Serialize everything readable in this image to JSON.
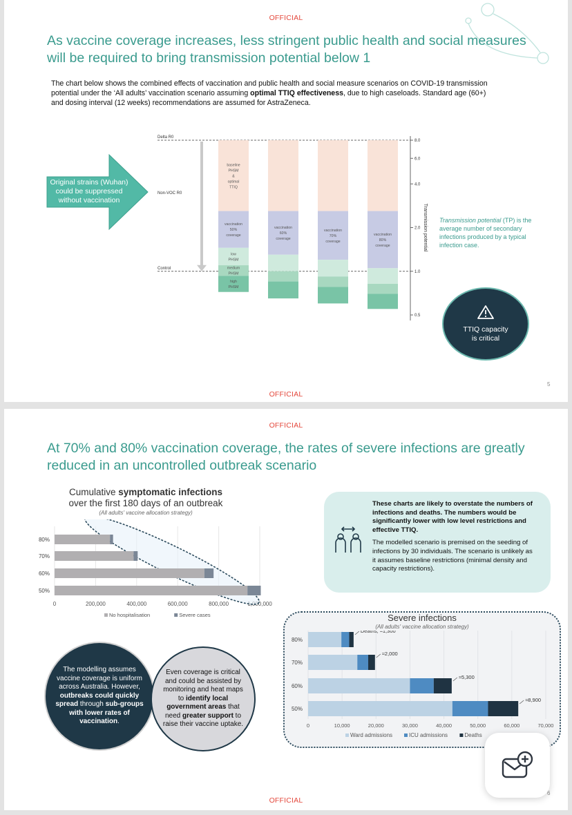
{
  "slide1": {
    "official": "OFFICIAL",
    "official_footer": "OFFICIAL",
    "title": "As vaccine coverage increases, less stringent public health and social measures will be required to bring transmission potential below 1",
    "intro_parts": {
      "a": "The chart below shows the combined effects of vaccination and public health and social measure scenarios on COVID-19 transmission potential under the ‘All adults’ vaccination scenario assuming ",
      "b": "optimal TTIQ effectiveness",
      "c": ", due to high caseloads. Standard age (60+) and dosing interval (12 weeks) recommendations are assumed for AstraZeneca."
    },
    "arrow_text": "Original strains (Wuhan) could be suppressed without vaccination",
    "page_number": "5",
    "tp_definition_em": "Transmission potential",
    "tp_definition_rest": " (TP) is the average number of secondary infections produced by a typical infection case.",
    "ttiq_line1": "TTIQ capacity",
    "ttiq_line2": "is critical",
    "chart_data": {
      "type": "bar",
      "ylabel": "Transmission potential",
      "scale": "log",
      "yticks": [
        0.5,
        1.0,
        2.0,
        4.0,
        6.0,
        8.0
      ],
      "ytick_labels": [
        "0.5",
        "1.0",
        "2.0",
        "4.0",
        "6.0",
        "8.0"
      ],
      "reference_lines": [
        {
          "label": "Delta R0",
          "value": 8.0
        },
        {
          "label": "Non-VOC R0",
          "value": 3.3
        },
        {
          "label": "Control",
          "value": 1.0
        }
      ],
      "columns": [
        {
          "segments": [
            {
              "label_lines": [
                "baseline",
                "PHSM",
                "&",
                "optimal",
                "TTIQ"
              ],
              "from": 8.0,
              "to": 2.6,
              "color": "#f9e3d8"
            },
            {
              "label_lines": [
                "vaccination",
                "50%",
                "coverage"
              ],
              "from": 2.6,
              "to": 1.45,
              "color": "#c7cbe4"
            },
            {
              "label_lines": [
                "low",
                "PHSM"
              ],
              "from": 1.45,
              "to": 1.1,
              "color": "#cfeadd"
            },
            {
              "label_lines": [
                "medium",
                "PHSM"
              ],
              "from": 1.1,
              "to": 0.93,
              "color": "#a8d8c0"
            },
            {
              "label_lines": [
                "high",
                "PHSM"
              ],
              "from": 0.93,
              "to": 0.72,
              "color": "#79c4a6"
            }
          ]
        },
        {
          "segments": [
            {
              "label_lines": [],
              "from": 8.0,
              "to": 2.6,
              "color": "#f9e3d8"
            },
            {
              "label_lines": [
                "vaccination",
                "60%",
                "coverage"
              ],
              "from": 2.6,
              "to": 1.3,
              "color": "#c7cbe4"
            },
            {
              "label_lines": [],
              "from": 1.3,
              "to": 1.0,
              "color": "#cfeadd"
            },
            {
              "label_lines": [],
              "from": 1.0,
              "to": 0.85,
              "color": "#a8d8c0"
            },
            {
              "label_lines": [],
              "from": 0.85,
              "to": 0.65,
              "color": "#79c4a6"
            }
          ]
        },
        {
          "segments": [
            {
              "label_lines": [],
              "from": 8.0,
              "to": 2.6,
              "color": "#f9e3d8"
            },
            {
              "label_lines": [
                "vaccination",
                "70%",
                "coverage"
              ],
              "from": 2.6,
              "to": 1.2,
              "color": "#c7cbe4"
            },
            {
              "label_lines": [],
              "from": 1.2,
              "to": 0.92,
              "color": "#cfeadd"
            },
            {
              "label_lines": [],
              "from": 0.92,
              "to": 0.78,
              "color": "#a8d8c0"
            },
            {
              "label_lines": [],
              "from": 0.78,
              "to": 0.6,
              "color": "#79c4a6"
            }
          ]
        },
        {
          "segments": [
            {
              "label_lines": [],
              "from": 8.0,
              "to": 2.6,
              "color": "#f9e3d8"
            },
            {
              "label_lines": [
                "vaccination",
                "80%",
                "coverage"
              ],
              "from": 2.6,
              "to": 1.05,
              "color": "#c7cbe4"
            },
            {
              "label_lines": [],
              "from": 1.05,
              "to": 0.82,
              "color": "#cfeadd"
            },
            {
              "label_lines": [],
              "from": 0.82,
              "to": 0.7,
              "color": "#a8d8c0"
            },
            {
              "label_lines": [],
              "from": 0.7,
              "to": 0.55,
              "color": "#79c4a6"
            }
          ]
        }
      ]
    }
  },
  "slide2": {
    "official": "OFFICIAL",
    "official_footer": "OFFICIAL",
    "title": "At 70% and 80% vaccination coverage, the rates of severe infections are greatly reduced in an uncontrolled outbreak scenario",
    "sym_title_a": "Cumulative ",
    "sym_title_b": "symptomatic infections",
    "sym_title_c": "over the first 180 days of an outbreak",
    "sym_subtitle": "(All adults' vaccine allocation strategy)",
    "caveat_bold": "These charts are likely to overstate the numbers of infections and deaths. The numbers would be significantly lower with low level restrictions and effective TTIQ.",
    "caveat_body": "The modelled scenario is premised on the seeding of infections by 30 individuals. The scenario is unlikely as it assumes baseline restrictions (minimal density and capacity restrictions).",
    "severe_title": "Severe infections",
    "severe_subtitle": "(All adults' vaccine allocation strategy)",
    "dark_circle": {
      "a": "The modelling assumes vaccine coverage is uniform across Australia. However, ",
      "b": "outbreaks could quickly spread",
      "c": " through ",
      "d": "sub-groups with lower rates of vaccination",
      "e": "."
    },
    "grey_circle": {
      "a": "Even coverage is critical and could be assisted by monitoring and heat maps to ",
      "b": "identify local government areas",
      "c": " that need ",
      "d": "greater support",
      "e": " to raise their vaccine uptake."
    },
    "page_number": "6",
    "chart_data": [
      {
        "type": "bar",
        "orientation": "horizontal",
        "stacked": true,
        "title": "Cumulative symptomatic infections over the first 180 days of an outbreak",
        "subtitle": "(All adults' vaccine allocation strategy)",
        "categories": [
          "80%",
          "70%",
          "60%",
          "50%"
        ],
        "xlim": [
          0,
          1000000
        ],
        "xticks": [
          0,
          200000,
          400000,
          600000,
          800000,
          1000000
        ],
        "xtick_labels": [
          "0",
          "200,000",
          "400,000",
          "600,000",
          "800,000",
          "1,000,000"
        ],
        "series": [
          {
            "name": "No hospitalisation",
            "color": "#b1afb1",
            "values": [
              270000,
              385000,
              730000,
              940000
            ]
          },
          {
            "name": "Severe cases",
            "color": "#7b8796",
            "values": [
              15000,
              20000,
              45000,
              65000
            ]
          }
        ],
        "legend": "bottom"
      },
      {
        "type": "bar",
        "orientation": "horizontal",
        "stacked": true,
        "title": "Severe infections",
        "subtitle": "(All adults' vaccine allocation strategy)",
        "categories": [
          "80%",
          "70%",
          "60%",
          "50%"
        ],
        "xlim": [
          0,
          70000
        ],
        "xticks": [
          0,
          10000,
          20000,
          30000,
          40000,
          50000,
          60000,
          70000
        ],
        "xtick_labels": [
          "0",
          "10,000",
          "20,000",
          "30,000",
          "40,000",
          "50,000",
          "60,000",
          "70,000"
        ],
        "series": [
          {
            "name": "Ward admissions",
            "color": "#bcd2e4",
            "values": [
              9800,
              14500,
              30000,
              42500
            ]
          },
          {
            "name": "ICU admissions",
            "color": "#4e8bc2",
            "values": [
              2300,
              3200,
              7000,
              10500
            ]
          },
          {
            "name": "Deaths",
            "color": "#1f3342",
            "values": [
              1300,
              2000,
              5300,
              8900
            ]
          }
        ],
        "annotations": [
          "Deaths, ≈1,300",
          "≈2,000",
          "≈5,300",
          "≈8,900"
        ],
        "legend": "bottom"
      }
    ]
  }
}
